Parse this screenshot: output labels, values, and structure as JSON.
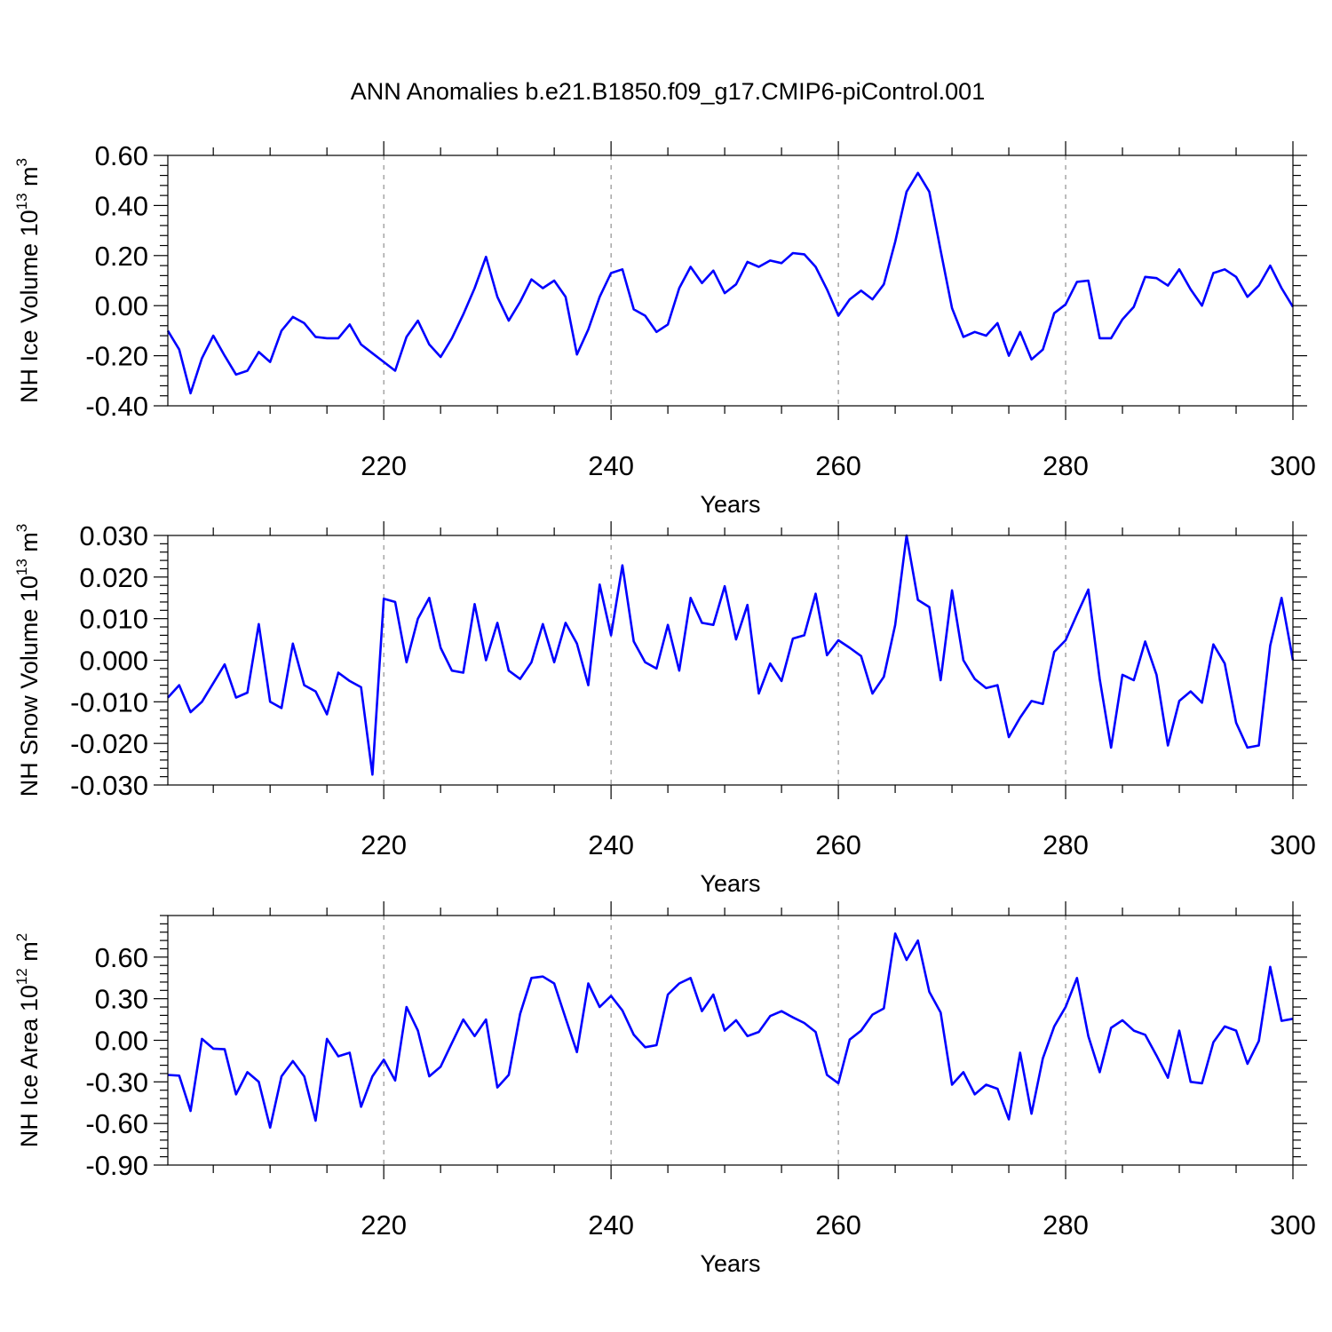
{
  "title": "ANN Anomalies b.e21.B1850.f09_g17.CMIP6-piControl.001",
  "colors": {
    "series": "#0000ff",
    "grid": "#7a7a7a",
    "frame": "#000000"
  },
  "chart_data": [
    {
      "type": "line",
      "ylabel": "NH Ice Volume 10",
      "ylabel_exp": "13",
      "ylabel_unit": " m",
      "ylabel_unit_exp": "3",
      "xlabel": "Years",
      "xlim": [
        201,
        300
      ],
      "ylim": [
        -0.4,
        0.6
      ],
      "yticks": [
        "-0.40",
        "-0.20",
        "0.00",
        "0.20",
        "0.40",
        "0.60"
      ],
      "xticks": [
        "220",
        "240",
        "260",
        "280",
        "300"
      ],
      "grid": "vertical-dashed",
      "x_start": 201,
      "values": [
        -0.1,
        -0.175,
        -0.35,
        -0.21,
        -0.12,
        -0.2,
        -0.275,
        -0.26,
        -0.185,
        -0.225,
        -0.1,
        -0.045,
        -0.07,
        -0.125,
        -0.13,
        -0.13,
        -0.075,
        -0.155,
        -0.19,
        -0.225,
        -0.26,
        -0.125,
        -0.06,
        -0.155,
        -0.205,
        -0.13,
        -0.035,
        0.07,
        0.195,
        0.035,
        -0.06,
        0.015,
        0.105,
        0.07,
        0.1,
        0.035,
        -0.195,
        -0.095,
        0.035,
        0.13,
        0.145,
        -0.015,
        -0.04,
        -0.105,
        -0.075,
        0.07,
        0.155,
        0.09,
        0.14,
        0.05,
        0.085,
        0.175,
        0.155,
        0.18,
        0.17,
        0.21,
        0.205,
        0.155,
        0.065,
        -0.04,
        0.025,
        0.06,
        0.025,
        0.085,
        0.255,
        0.455,
        0.53,
        0.455,
        0.22,
        -0.01,
        -0.125,
        -0.105,
        -0.12,
        -0.07,
        -0.2,
        -0.105,
        -0.215,
        -0.175,
        -0.03,
        0.005,
        0.095,
        0.1,
        -0.13,
        -0.13,
        -0.055,
        -0.005,
        0.115,
        0.11,
        0.08,
        0.145,
        0.065,
        0.0,
        0.13,
        0.145,
        0.115,
        0.035,
        0.08,
        0.16,
        0.07,
        -0.005
      ]
    },
    {
      "type": "line",
      "ylabel": "NH Snow Volume 10",
      "ylabel_exp": "13",
      "ylabel_unit": " m",
      "ylabel_unit_exp": "3",
      "xlabel": "Years",
      "xlim": [
        201,
        300
      ],
      "ylim": [
        -0.03,
        0.03
      ],
      "yticks": [
        "-0.030",
        "-0.020",
        "-0.010",
        "0.000",
        "0.010",
        "0.020",
        "0.030"
      ],
      "xticks": [
        "220",
        "240",
        "260",
        "280",
        "300"
      ],
      "grid": "vertical-dashed",
      "x_start": 201,
      "values": [
        -0.009,
        -0.006,
        -0.0125,
        -0.01,
        -0.0055,
        -0.001,
        -0.009,
        -0.0078,
        0.0087,
        -0.01,
        -0.0115,
        0.004,
        -0.006,
        -0.0075,
        -0.013,
        -0.003,
        -0.005,
        -0.0065,
        -0.0275,
        0.0148,
        0.014,
        -0.0005,
        0.01,
        0.015,
        0.003,
        -0.0025,
        -0.003,
        0.0135,
        0.0,
        0.009,
        -0.0025,
        -0.0045,
        -0.0005,
        0.0087,
        -0.0005,
        0.009,
        0.004,
        -0.006,
        0.0182,
        0.006,
        0.0228,
        0.0045,
        -0.0005,
        -0.002,
        0.0085,
        -0.0025,
        0.015,
        0.009,
        0.0085,
        0.0178,
        0.005,
        0.0133,
        -0.008,
        -0.0008,
        -0.005,
        0.0052,
        0.006,
        0.016,
        0.0012,
        0.0048,
        0.003,
        0.001,
        -0.008,
        -0.004,
        0.0085,
        0.03,
        0.0145,
        0.0128,
        -0.0048,
        0.0168,
        0.0,
        -0.0045,
        -0.0067,
        -0.006,
        -0.0185,
        -0.0138,
        -0.0098,
        -0.0105,
        0.002,
        0.0048,
        0.011,
        0.017,
        -0.0045,
        -0.021,
        -0.0035,
        -0.0048,
        0.0045,
        -0.0035,
        -0.0205,
        -0.0098,
        -0.0075,
        -0.0102,
        0.0038,
        -0.0008,
        -0.015,
        -0.021,
        -0.0205,
        0.0035,
        0.015,
        0.0
      ]
    },
    {
      "type": "line",
      "ylabel": "NH Ice Area 10",
      "ylabel_exp": "12",
      "ylabel_unit": " m",
      "ylabel_unit_exp": "2",
      "xlabel": "Years",
      "xlim": [
        201,
        300
      ],
      "ylim": [
        -0.9,
        0.9
      ],
      "yticks": [
        "-0.90",
        "-0.60",
        "-0.30",
        "0.00",
        "0.30",
        "0.60"
      ],
      "xticks": [
        "220",
        "240",
        "260",
        "280",
        "300"
      ],
      "grid": "vertical-dashed",
      "x_start": 201,
      "values": [
        -0.25,
        -0.255,
        -0.51,
        0.01,
        -0.06,
        -0.065,
        -0.39,
        -0.23,
        -0.3,
        -0.63,
        -0.26,
        -0.15,
        -0.26,
        -0.58,
        0.01,
        -0.115,
        -0.09,
        -0.48,
        -0.26,
        -0.14,
        -0.29,
        0.24,
        0.07,
        -0.26,
        -0.19,
        -0.02,
        0.15,
        0.03,
        0.15,
        -0.34,
        -0.25,
        0.19,
        0.45,
        0.46,
        0.41,
        0.16,
        -0.085,
        0.41,
        0.24,
        0.32,
        0.215,
        0.04,
        -0.05,
        -0.035,
        0.33,
        0.41,
        0.45,
        0.21,
        0.33,
        0.07,
        0.145,
        0.03,
        0.06,
        0.175,
        0.21,
        0.165,
        0.125,
        0.06,
        -0.25,
        -0.31,
        0.005,
        0.07,
        0.185,
        0.23,
        0.77,
        0.58,
        0.72,
        0.35,
        0.2,
        -0.32,
        -0.23,
        -0.39,
        -0.32,
        -0.35,
        -0.57,
        -0.09,
        -0.53,
        -0.13,
        0.1,
        0.24,
        0.45,
        0.03,
        -0.23,
        0.09,
        0.145,
        0.07,
        0.04,
        -0.11,
        -0.27,
        0.07,
        -0.3,
        -0.31,
        -0.015,
        0.1,
        0.07,
        -0.17,
        -0.005,
        0.53,
        0.14,
        0.155
      ]
    }
  ]
}
